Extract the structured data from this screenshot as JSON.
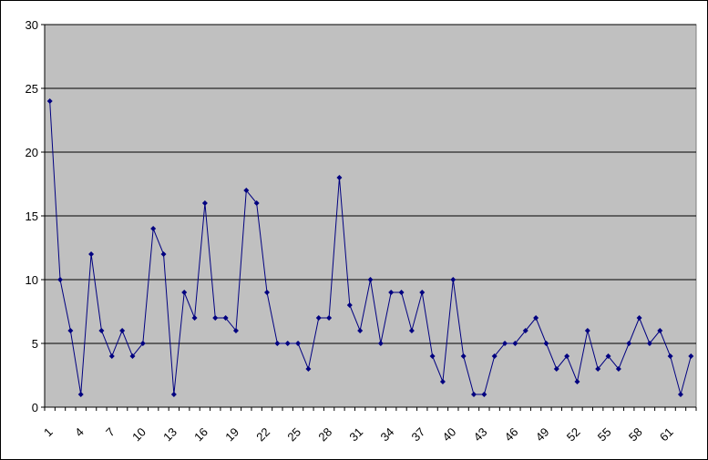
{
  "chart_data": {
    "type": "line",
    "categories": [
      1,
      null,
      null,
      4,
      null,
      null,
      7,
      null,
      null,
      10,
      null,
      null,
      13,
      null,
      null,
      16,
      null,
      null,
      19,
      null,
      null,
      22,
      null,
      null,
      25,
      null,
      null,
      28,
      null,
      null,
      31,
      null,
      null,
      34,
      null,
      null,
      37,
      null,
      null,
      40,
      null,
      null,
      43,
      null,
      null,
      46,
      null,
      null,
      49,
      null,
      null,
      52,
      null,
      null,
      55,
      null,
      null,
      58,
      null,
      null,
      61,
      null,
      null
    ],
    "series": [
      {
        "color": "#000080",
        "values": [
          24,
          10,
          6,
          1,
          12,
          6,
          4,
          6,
          4,
          5,
          14,
          12,
          1,
          9,
          7,
          16,
          7,
          7,
          6,
          17,
          16,
          9,
          5,
          5,
          5,
          3,
          7,
          7,
          18,
          8,
          6,
          10,
          5,
          9,
          9,
          6,
          9,
          4,
          2,
          10,
          4,
          1,
          1,
          4,
          5,
          5,
          6,
          7,
          5,
          3,
          4,
          2,
          6,
          3,
          4,
          3,
          5,
          7,
          5,
          6,
          4,
          1,
          4
        ]
      }
    ],
    "ylim": [
      0,
      30
    ],
    "yticks": [
      0,
      5,
      10,
      15,
      20,
      25,
      30
    ],
    "grid": true,
    "background": "#c0c0c0"
  }
}
